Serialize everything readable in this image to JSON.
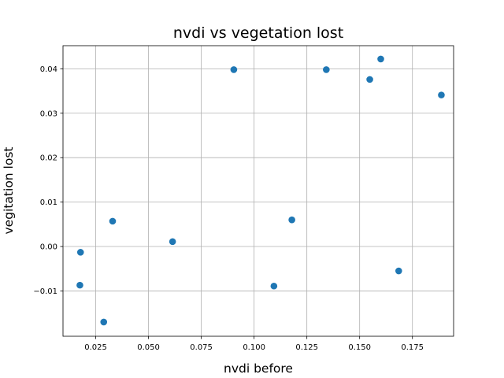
{
  "chart_data": {
    "type": "scatter",
    "title": "nvdi vs vegetation lost",
    "xlabel": "nvdi before",
    "ylabel": "vegitation lost",
    "xlim": [
      0.0095,
      0.1945
    ],
    "ylim": [
      -0.0202,
      0.0452
    ],
    "xticks": [
      0.025,
      0.05,
      0.075,
      0.1,
      0.125,
      0.15,
      0.175
    ],
    "xtick_labels": [
      "0.025",
      "0.050",
      "0.075",
      "0.100",
      "0.125",
      "0.150",
      "0.175"
    ],
    "yticks": [
      -0.01,
      0.0,
      0.01,
      0.02,
      0.03,
      0.04
    ],
    "ytick_labels": [
      "−0.01",
      "0.00",
      "0.01",
      "0.02",
      "0.03",
      "0.04"
    ],
    "grid": true,
    "color": "#1f77b4",
    "series": [
      {
        "x": [
          0.0178,
          0.0175,
          0.0288,
          0.033,
          0.0614,
          0.0904,
          0.1094,
          0.1179,
          0.1342,
          0.1548,
          0.16,
          0.1685,
          0.1887
        ],
        "y": [
          -0.0013,
          -0.0087,
          -0.017,
          0.0057,
          0.0011,
          0.0398,
          -0.0089,
          0.006,
          0.0398,
          0.0376,
          0.0422,
          -0.0055,
          0.0341
        ]
      }
    ]
  }
}
